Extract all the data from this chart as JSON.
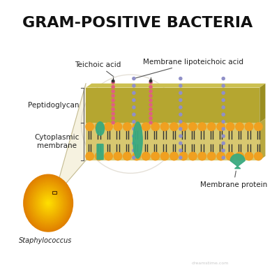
{
  "title": "GRAM-POSITIVE BACTERIA",
  "title_fontsize": 16,
  "title_fontweight": "bold",
  "background_color": "#ffffff",
  "peptidoglycan_color": "#b5a630",
  "peptidoglycan_top_color": "#ccc050",
  "peptidoglycan_right_color": "#9a8e20",
  "membrane_fill_color": "#d8c870",
  "membrane_right_color": "#b8a840",
  "phospholipid_head_color": "#f0a020",
  "phospholipid_tail_color": "#303030",
  "teichoic_dot_color": "#e06080",
  "lipoteichoic_dot_color": "#9090c8",
  "protein_color": "#3aaa80",
  "bacterium_color_inner": "#f8c020",
  "bacterium_color_outer": "#e07000",
  "label_fontsize": 7.5,
  "staphylococcus_label": "Staphylococcus",
  "teichoic_label": "Teichoic acid",
  "lipoteichoic_label": "Membrane lipoteichoic acid",
  "peptidoglycan_label": "Peptidoglycan",
  "cytoplasmic_label": "Cytoplasmic\nmembrane",
  "membrane_protein_label": "Membrane protein",
  "watermark": "dreamstime.com",
  "zoom_bg_color": "#f0e8c8",
  "concentric_color": "#d0c8b8"
}
